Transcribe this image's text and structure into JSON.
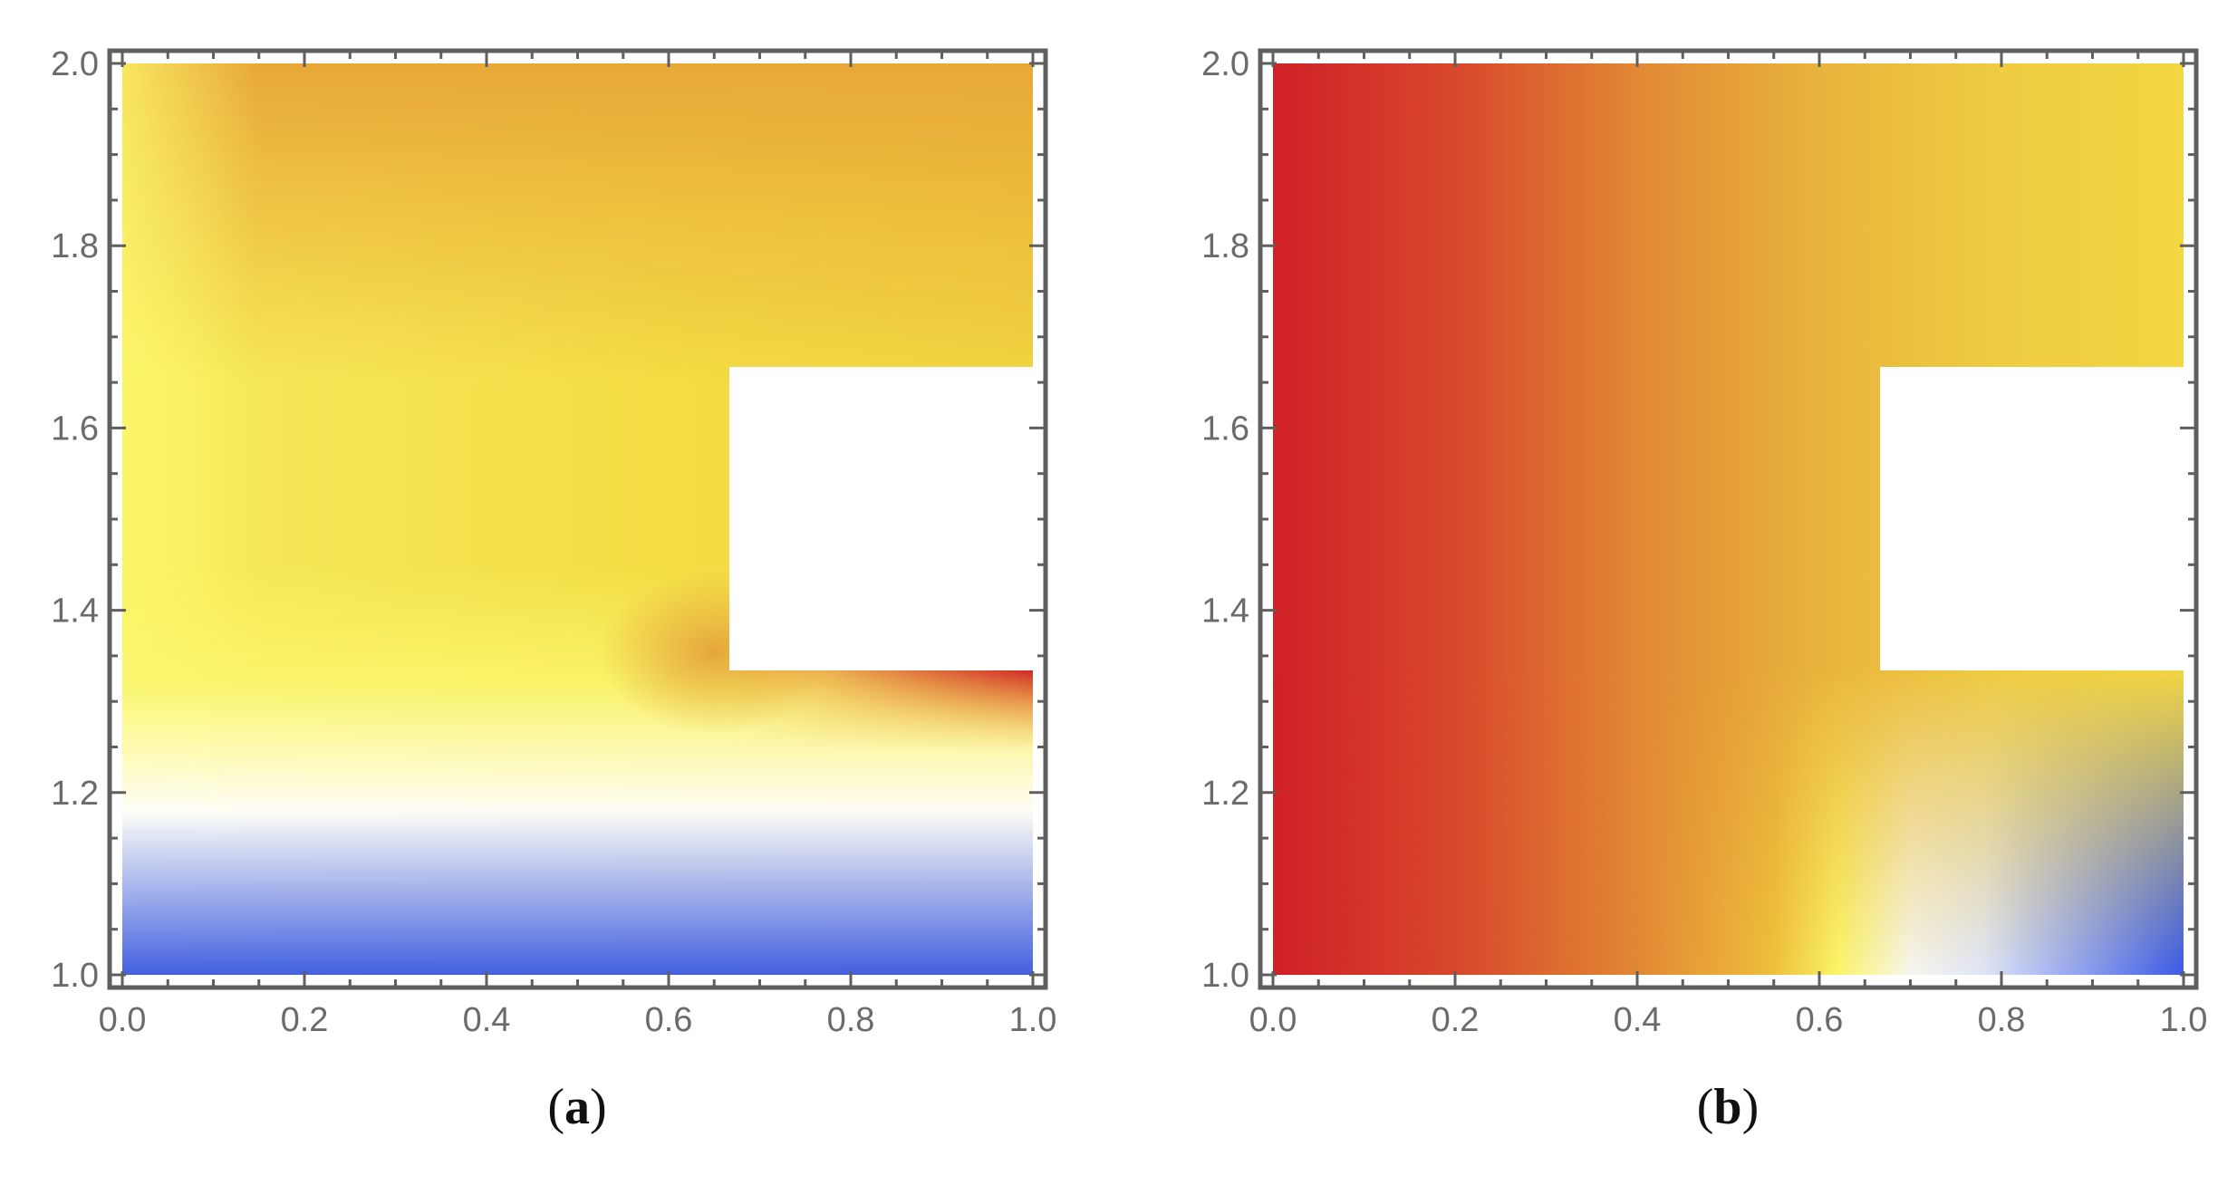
{
  "panels": [
    {
      "caption": "(a)",
      "caption_letter": "a"
    },
    {
      "caption": "(b)",
      "caption_letter": "b"
    }
  ],
  "chart_data": [
    {
      "type": "heatmap",
      "panel": "a",
      "xlim": [
        0.0,
        1.0
      ],
      "ylim": [
        1.0,
        2.0
      ],
      "xticks": [
        "0.0",
        "0.2",
        "0.4",
        "0.6",
        "0.8",
        "1.0"
      ],
      "yticks": [
        "1.0",
        "1.2",
        "1.4",
        "1.6",
        "1.8",
        "2.0"
      ],
      "grid": false,
      "domain_cutout": {
        "x": [
          0.6667,
          1.0
        ],
        "y": [
          1.3333,
          1.6667
        ]
      },
      "colormap": [
        "#3a5ae8",
        "#ffffff",
        "#fbf56a",
        "#e8a838",
        "#d02828"
      ],
      "field_description_points": [
        {
          "x": 0.05,
          "y": 1.5,
          "level": "yellow"
        },
        {
          "x": 0.5,
          "y": 1.95,
          "level": "orange"
        },
        {
          "x": 0.95,
          "y": 1.3,
          "level": "red"
        },
        {
          "x": 0.95,
          "y": 1.02,
          "level": "blue"
        },
        {
          "x": 0.3,
          "y": 1.05,
          "level": "white"
        }
      ]
    },
    {
      "type": "heatmap",
      "panel": "b",
      "xlim": [
        0.0,
        1.0
      ],
      "ylim": [
        1.0,
        2.0
      ],
      "xticks": [
        "0.0",
        "0.2",
        "0.4",
        "0.6",
        "0.8",
        "1.0"
      ],
      "yticks": [
        "1.0",
        "1.2",
        "1.4",
        "1.6",
        "1.8",
        "2.0"
      ],
      "grid": false,
      "domain_cutout": {
        "x": [
          0.6667,
          1.0
        ],
        "y": [
          1.3333,
          1.6667
        ]
      },
      "colormap": [
        "#3a5ae8",
        "#ffffff",
        "#fbf56a",
        "#e8a838",
        "#d02828"
      ],
      "upper_gradient_x": [
        {
          "x": 0.0,
          "color": "#d02028"
        },
        {
          "x": 0.2,
          "color": "#d8482c"
        },
        {
          "x": 0.4,
          "color": "#e28834"
        },
        {
          "x": 0.6,
          "color": "#e8b43c"
        },
        {
          "x": 0.8,
          "color": "#efcc42"
        },
        {
          "x": 1.0,
          "color": "#f2d642"
        }
      ],
      "lower_gradient_x": [
        {
          "x": 0.0,
          "color": "#d02028"
        },
        {
          "x": 0.2,
          "color": "#d8482c"
        },
        {
          "x": 0.4,
          "color": "#e28834"
        },
        {
          "x": 0.55,
          "color": "#efc03c"
        },
        {
          "x": 0.62,
          "color": "#fbf56a"
        },
        {
          "x": 0.7,
          "color": "#f6f6ee"
        },
        {
          "x": 0.78,
          "color": "#dfe5f8"
        },
        {
          "x": 1.0,
          "color": "#3a5ae8"
        }
      ]
    }
  ]
}
